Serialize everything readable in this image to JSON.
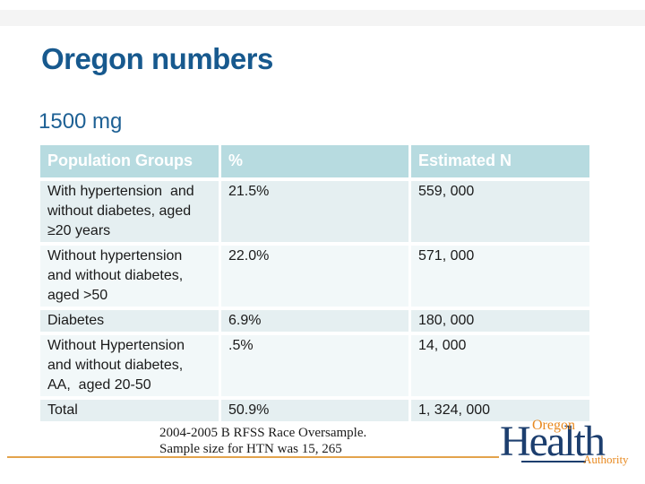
{
  "slide": {
    "title": "Oregon numbers",
    "subtitle": "1500 mg"
  },
  "table": {
    "headers": [
      "Population Groups",
      "%",
      "Estimated N"
    ],
    "rows": [
      {
        "group": "With hypertension  and\nwithout diabetes, aged\n≥20 years",
        "percent": "21.5%",
        "estimated_n": "559, 000"
      },
      {
        "group": "Without hypertension\nand without diabetes,\naged >50",
        "percent": "22.0%",
        "estimated_n": "571, 000"
      },
      {
        "group": "Diabetes",
        "percent": "6.9%",
        "estimated_n": "180, 000"
      },
      {
        "group": "Without Hypertension\nand without diabetes,\nAA,  aged 20-50",
        "percent": ".5%",
        "estimated_n": "14, 000"
      },
      {
        "group": "Total",
        "percent": "50.9%",
        "estimated_n": "1, 324, 000"
      }
    ]
  },
  "footnote": {
    "line1": "2004-2005 B RFSS Race Oversample.",
    "line2": "Sample size for HTN was 15, 265"
  },
  "logo": {
    "top": "Oregon",
    "main": "Health",
    "bottom": "Authority"
  },
  "colors": {
    "title_blue": "#17598e",
    "subtitle_blue": "#1d6094",
    "header_bg": "#b7dbe0",
    "header_text": "#ffffff",
    "row_dark": "#e5eff1",
    "row_light": "#f2f8f9",
    "cell_text": "#1a1a1a",
    "rule_orange": "#e3a34c",
    "logo_navy": "#1c3e6e",
    "logo_orange": "#e8891f",
    "band_gray": "#f4f4f4"
  }
}
